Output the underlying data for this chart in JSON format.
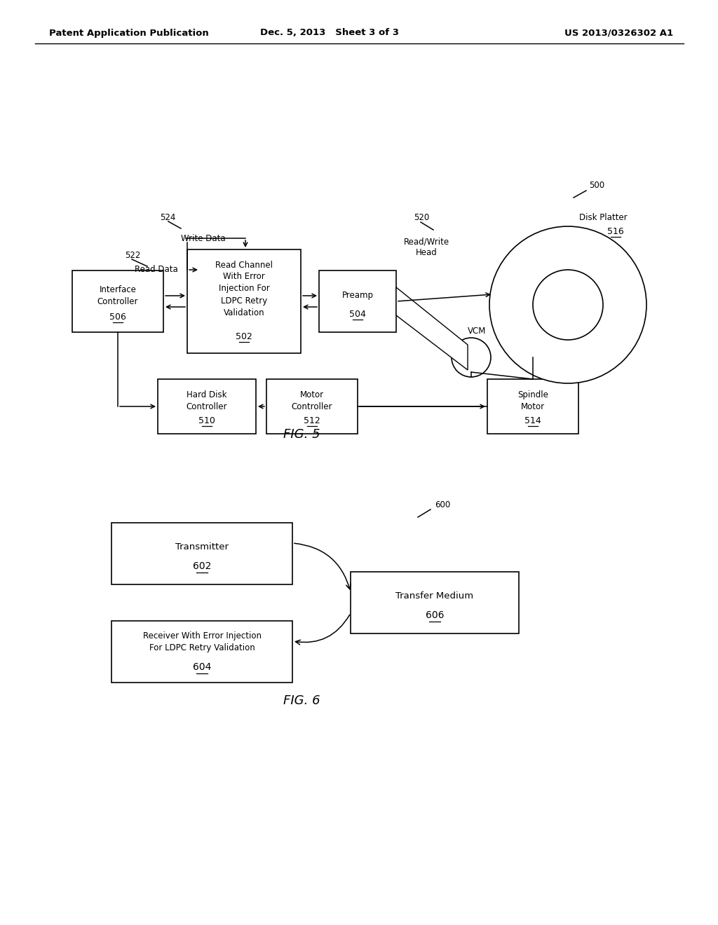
{
  "bg_color": "#ffffff",
  "header_left": "Patent Application Publication",
  "header_mid": "Dec. 5, 2013   Sheet 3 of 3",
  "header_right": "US 2013/0326302 A1"
}
